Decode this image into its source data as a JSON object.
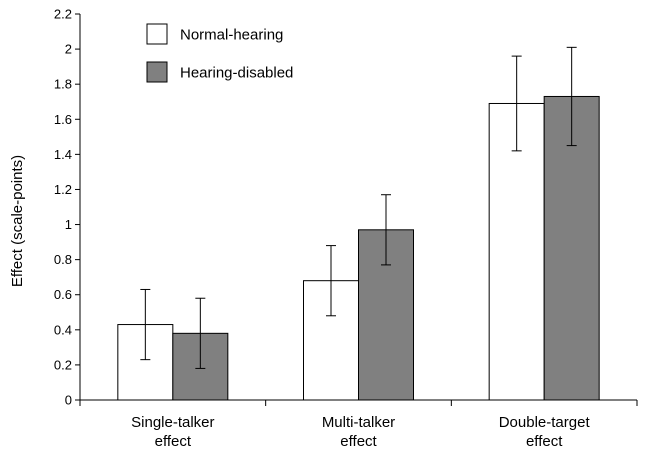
{
  "chart_data": {
    "type": "bar",
    "categories": [
      [
        "Single-talker",
        "effect"
      ],
      [
        "Multi-talker",
        "effect"
      ],
      [
        "Double-target",
        "effect"
      ]
    ],
    "series": [
      {
        "name": "Normal-hearing",
        "color": "#ffffff",
        "values": [
          0.43,
          0.68,
          1.69
        ],
        "error": [
          0.2,
          0.2,
          0.27
        ]
      },
      {
        "name": "Hearing-disabled",
        "color": "#808080",
        "values": [
          0.38,
          0.97,
          1.73
        ],
        "error": [
          0.2,
          0.2,
          0.28
        ]
      }
    ],
    "title": "",
    "xlabel": "",
    "ylabel": "Effect (scale-points)",
    "ylim": [
      0,
      2.2
    ],
    "yticks": [
      "0",
      "0.2",
      "0.4",
      "0.6",
      "0.8",
      "1",
      "1.2",
      "1.4",
      "1.6",
      "1.8",
      "2",
      "2.2"
    ],
    "grid": false,
    "legend_position": "top-left"
  }
}
